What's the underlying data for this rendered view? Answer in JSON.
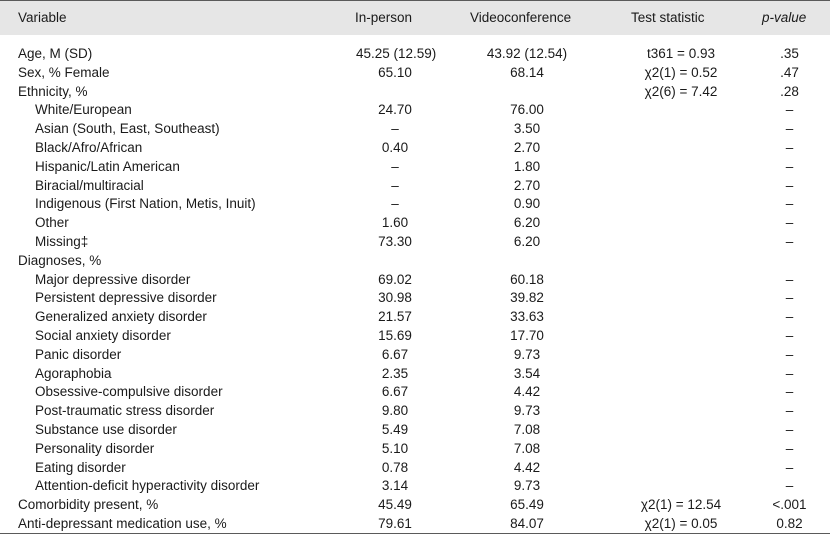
{
  "header": {
    "variable": "Variable",
    "in_person": "In-person",
    "videoconference": "Videoconference",
    "test_statistic": "Test statistic",
    "p_value": "p-value"
  },
  "rows": [
    {
      "variable": "Age, M (SD)",
      "in_person": "45.25 (12.59)",
      "videoconference": "43.92 (12.54)",
      "test": "t361 = 0.93",
      "p": ".35",
      "indent": false
    },
    {
      "variable": "Sex, % Female",
      "in_person": "65.10",
      "videoconference": "68.14",
      "test": "χ2(1) = 0.52",
      "p": ".47",
      "indent": false
    },
    {
      "variable": "Ethnicity, %",
      "in_person": "",
      "videoconference": "",
      "test": "χ2(6) = 7.42",
      "p": ".28",
      "indent": false
    },
    {
      "variable": "White/European",
      "in_person": "24.70",
      "videoconference": "76.00",
      "test": "",
      "p": "–",
      "indent": true
    },
    {
      "variable": "Asian (South, East, Southeast)",
      "in_person": "–",
      "videoconference": "3.50",
      "test": "",
      "p": "–",
      "indent": true
    },
    {
      "variable": "Black/Afro/African",
      "in_person": "0.40",
      "videoconference": "2.70",
      "test": "",
      "p": "–",
      "indent": true
    },
    {
      "variable": "Hispanic/Latin American",
      "in_person": "–",
      "videoconference": "1.80",
      "test": "",
      "p": "–",
      "indent": true
    },
    {
      "variable": "Biracial/multiracial",
      "in_person": "–",
      "videoconference": "2.70",
      "test": "",
      "p": "–",
      "indent": true
    },
    {
      "variable": "Indigenous (First Nation, Metis, Inuit)",
      "in_person": "–",
      "videoconference": "0.90",
      "test": "",
      "p": "–",
      "indent": true
    },
    {
      "variable": "Other",
      "in_person": "1.60",
      "videoconference": "6.20",
      "test": "",
      "p": "–",
      "indent": true
    },
    {
      "variable": "Missing‡",
      "in_person": "73.30",
      "videoconference": "6.20",
      "test": "",
      "p": "–",
      "indent": true
    },
    {
      "variable": "Diagnoses, %",
      "in_person": "",
      "videoconference": "",
      "test": "",
      "p": "",
      "indent": false
    },
    {
      "variable": "Major depressive disorder",
      "in_person": "69.02",
      "videoconference": "60.18",
      "test": "",
      "p": "–",
      "indent": true
    },
    {
      "variable": "Persistent depressive disorder",
      "in_person": "30.98",
      "videoconference": "39.82",
      "test": "",
      "p": "–",
      "indent": true
    },
    {
      "variable": "Generalized anxiety disorder",
      "in_person": "21.57",
      "videoconference": "33.63",
      "test": "",
      "p": "–",
      "indent": true
    },
    {
      "variable": "Social anxiety disorder",
      "in_person": "15.69",
      "videoconference": "17.70",
      "test": "",
      "p": "–",
      "indent": true
    },
    {
      "variable": "Panic disorder",
      "in_person": "6.67",
      "videoconference": "9.73",
      "test": "",
      "p": "–",
      "indent": true
    },
    {
      "variable": "Agoraphobia",
      "in_person": "2.35",
      "videoconference": "3.54",
      "test": "",
      "p": "–",
      "indent": true
    },
    {
      "variable": "Obsessive-compulsive disorder",
      "in_person": "6.67",
      "videoconference": "4.42",
      "test": "",
      "p": "–",
      "indent": true
    },
    {
      "variable": "Post-traumatic stress disorder",
      "in_person": "9.80",
      "videoconference": "9.73",
      "test": "",
      "p": "–",
      "indent": true
    },
    {
      "variable": "Substance use disorder",
      "in_person": "5.49",
      "videoconference": "7.08",
      "test": "",
      "p": "–",
      "indent": true
    },
    {
      "variable": "Personality disorder",
      "in_person": "5.10",
      "videoconference": "7.08",
      "test": "",
      "p": "–",
      "indent": true
    },
    {
      "variable": "Eating disorder",
      "in_person": "0.78",
      "videoconference": "4.42",
      "test": "",
      "p": "–",
      "indent": true
    },
    {
      "variable": "Attention-deficit hyperactivity disorder",
      "in_person": "3.14",
      "videoconference": "9.73",
      "test": "",
      "p": "–",
      "indent": true
    },
    {
      "variable": "Comorbidity present, %",
      "in_person": "45.49",
      "videoconference": "65.49",
      "test": "χ2(1) = 12.54",
      "p": "<.001",
      "indent": false
    },
    {
      "variable": "Anti-depressant medication use, %",
      "in_person": "79.61",
      "videoconference": "84.07",
      "test": "χ2(1) = 0.05",
      "p": "0.82",
      "indent": false
    }
  ]
}
